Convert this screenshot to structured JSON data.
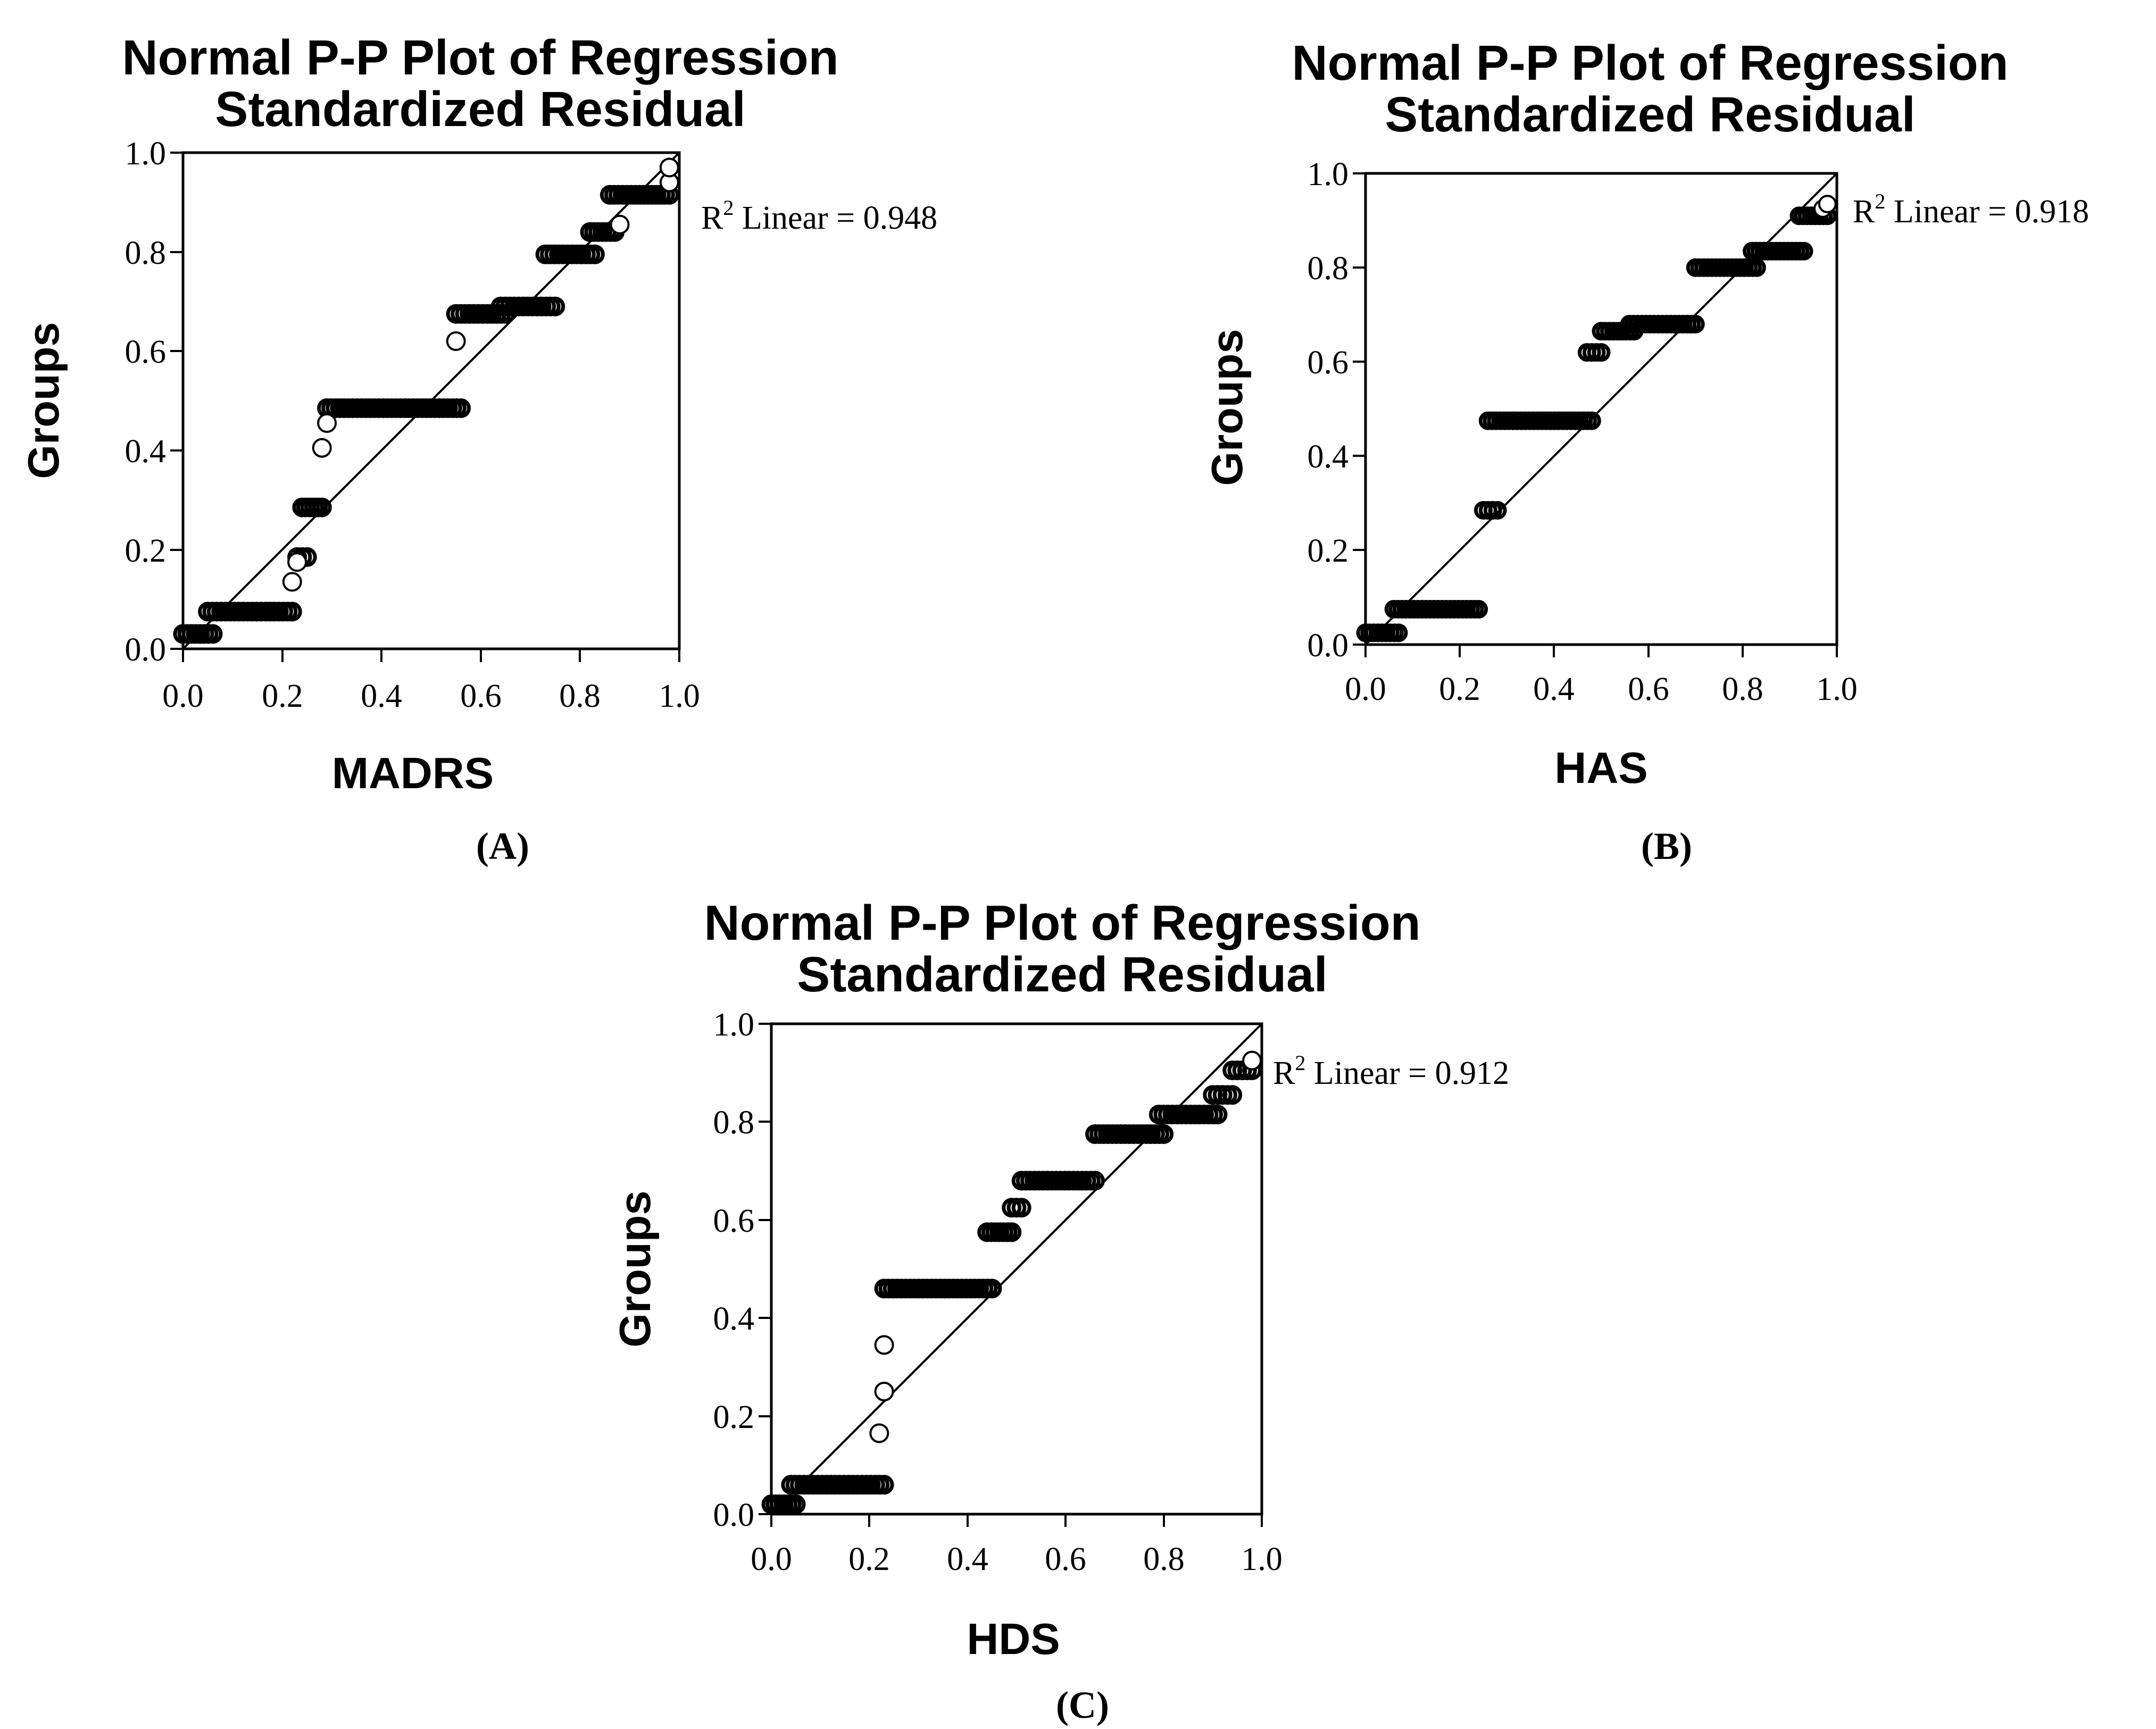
{
  "chart_data": [
    {
      "type": "scatter",
      "panel": "(A)",
      "title_lines": [
        "Normal P-P Plot of Regression",
        "Standardized Residual"
      ],
      "xlabel": "MADRS",
      "ylabel": "Groups",
      "xlim": [
        0,
        1
      ],
      "ylim": [
        0,
        1
      ],
      "xticks": [
        "0.0",
        "0.2",
        "0.4",
        "0.6",
        "0.8",
        "1.0"
      ],
      "yticks": [
        "0.0",
        "0.2",
        "0.4",
        "0.6",
        "0.8",
        "1.0"
      ],
      "r2_prefix": "R",
      "r2_sup": "2",
      "r2_text": " Linear = 0.948",
      "reference_line": [
        [
          0,
          0
        ],
        [
          1,
          1
        ]
      ],
      "filled_runs": [
        {
          "y": 0.03,
          "x_start": 0.0,
          "x_end": 0.06
        },
        {
          "y": 0.075,
          "x_start": 0.05,
          "x_end": 0.22
        },
        {
          "y": 0.185,
          "x_start": 0.23,
          "x_end": 0.25
        },
        {
          "y": 0.285,
          "x_start": 0.24,
          "x_end": 0.28
        },
        {
          "y": 0.485,
          "x_start": 0.29,
          "x_end": 0.56
        },
        {
          "y": 0.675,
          "x_start": 0.55,
          "x_end": 0.65
        },
        {
          "y": 0.69,
          "x_start": 0.64,
          "x_end": 0.75
        },
        {
          "y": 0.795,
          "x_start": 0.73,
          "x_end": 0.83
        },
        {
          "y": 0.84,
          "x_start": 0.82,
          "x_end": 0.87
        },
        {
          "y": 0.915,
          "x_start": 0.86,
          "x_end": 0.98
        }
      ],
      "open_points": [
        [
          0.22,
          0.135
        ],
        [
          0.23,
          0.175
        ],
        [
          0.28,
          0.405
        ],
        [
          0.29,
          0.455
        ],
        [
          0.55,
          0.62
        ],
        [
          0.88,
          0.855
        ],
        [
          0.98,
          0.94
        ],
        [
          0.98,
          0.97
        ]
      ]
    },
    {
      "type": "scatter",
      "panel": "(B)",
      "title_lines": [
        "Normal P-P Plot of Regression",
        "Standardized Residual"
      ],
      "xlabel": "HAS",
      "ylabel": "Groups",
      "xlim": [
        0,
        1
      ],
      "ylim": [
        0,
        1
      ],
      "xticks": [
        "0.0",
        "0.2",
        "0.4",
        "0.6",
        "0.8",
        "1.0"
      ],
      "yticks": [
        "0.0",
        "0.2",
        "0.4",
        "0.6",
        "0.8",
        "1.0"
      ],
      "r2_prefix": "R",
      "r2_sup": "2",
      "r2_text": " Linear = 0.918",
      "reference_line": [
        [
          0,
          0
        ],
        [
          1,
          1
        ]
      ],
      "filled_runs": [
        {
          "y": 0.025,
          "x_start": 0.0,
          "x_end": 0.07
        },
        {
          "y": 0.075,
          "x_start": 0.06,
          "x_end": 0.24
        },
        {
          "y": 0.285,
          "x_start": 0.25,
          "x_end": 0.28
        },
        {
          "y": 0.475,
          "x_start": 0.26,
          "x_end": 0.48
        },
        {
          "y": 0.62,
          "x_start": 0.47,
          "x_end": 0.5
        },
        {
          "y": 0.665,
          "x_start": 0.5,
          "x_end": 0.57
        },
        {
          "y": 0.68,
          "x_start": 0.56,
          "x_end": 0.7
        },
        {
          "y": 0.8,
          "x_start": 0.7,
          "x_end": 0.83
        },
        {
          "y": 0.835,
          "x_start": 0.82,
          "x_end": 0.93
        },
        {
          "y": 0.91,
          "x_start": 0.92,
          "x_end": 0.98
        }
      ],
      "open_points": [
        [
          0.97,
          0.925
        ],
        [
          0.98,
          0.935
        ]
      ]
    },
    {
      "type": "scatter",
      "panel": "(C)",
      "title_lines": [
        "Normal P-P Plot of Regression",
        "Standardized Residual"
      ],
      "xlabel": "HDS",
      "ylabel": "Groups",
      "xlim": [
        0,
        1
      ],
      "ylim": [
        0,
        1
      ],
      "xticks": [
        "0.0",
        "0.2",
        "0.4",
        "0.6",
        "0.8",
        "1.0"
      ],
      "yticks": [
        "0.0",
        "0.2",
        "0.4",
        "0.6",
        "0.8",
        "1.0"
      ],
      "r2_prefix": "R",
      "r2_sup": "2",
      "r2_text": " Linear = 0.912",
      "reference_line": [
        [
          0,
          0
        ],
        [
          1,
          1
        ]
      ],
      "filled_runs": [
        {
          "y": 0.02,
          "x_start": 0.0,
          "x_end": 0.05
        },
        {
          "y": 0.06,
          "x_start": 0.04,
          "x_end": 0.23
        },
        {
          "y": 0.46,
          "x_start": 0.23,
          "x_end": 0.45
        },
        {
          "y": 0.575,
          "x_start": 0.44,
          "x_end": 0.49
        },
        {
          "y": 0.625,
          "x_start": 0.49,
          "x_end": 0.51
        },
        {
          "y": 0.68,
          "x_start": 0.51,
          "x_end": 0.66
        },
        {
          "y": 0.775,
          "x_start": 0.66,
          "x_end": 0.8
        },
        {
          "y": 0.815,
          "x_start": 0.79,
          "x_end": 0.91
        },
        {
          "y": 0.855,
          "x_start": 0.9,
          "x_end": 0.94
        },
        {
          "y": 0.905,
          "x_start": 0.94,
          "x_end": 0.98
        }
      ],
      "open_points": [
        [
          0.22,
          0.165
        ],
        [
          0.23,
          0.25
        ],
        [
          0.23,
          0.345
        ],
        [
          0.98,
          0.925
        ]
      ]
    }
  ]
}
